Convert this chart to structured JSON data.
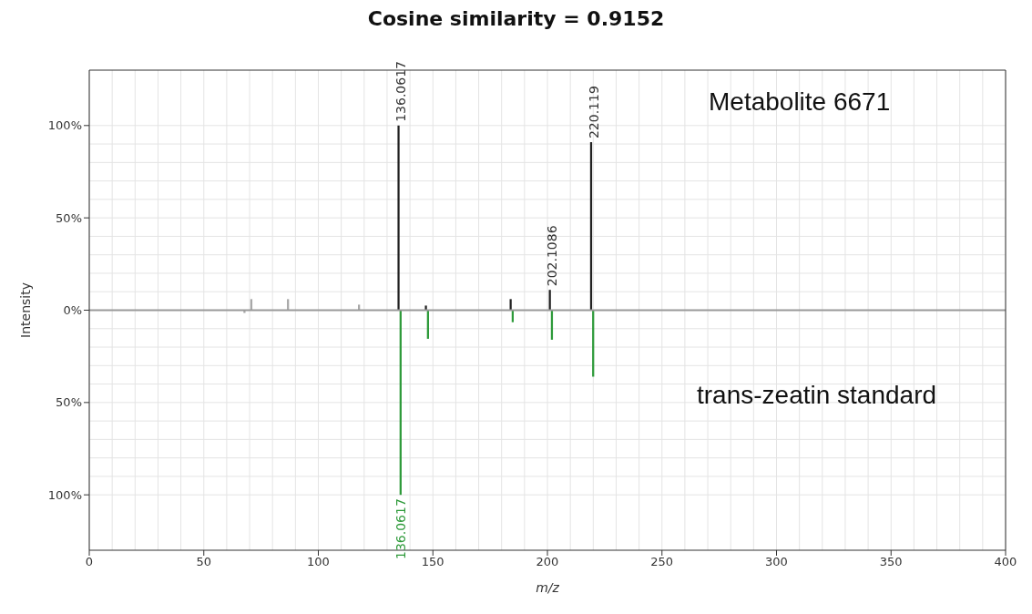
{
  "chart_data": {
    "type": "bar",
    "title": "Cosine similarity = 0.9152",
    "xlabel": "m/z",
    "ylabel": "Intensity",
    "xlim": [
      0,
      400
    ],
    "xticks": [
      0,
      50,
      100,
      150,
      200,
      250,
      300,
      350,
      400
    ],
    "ylim": [
      -130,
      130
    ],
    "yticks": [
      {
        "value": -100,
        "label": "100%"
      },
      {
        "value": -50,
        "label": "50%"
      },
      {
        "value": 0,
        "label": "0%"
      },
      {
        "value": 50,
        "label": "50%"
      },
      {
        "value": 100,
        "label": "100%"
      }
    ],
    "grid": true,
    "legend": false,
    "ref_lines": [
      {
        "axis": "y",
        "value": 0,
        "color": "#999999"
      }
    ],
    "series": [
      {
        "name": "Metabolite 6671",
        "color": "#222222",
        "x": [
          136.06,
          148,
          185,
          202.11,
          220.12
        ],
        "values": [
          100,
          2.5,
          6,
          11,
          91
        ]
      },
      {
        "name": "trans-zeatin standard",
        "color": "#2e9a3a",
        "x": [
          136.06,
          148,
          185,
          202.11,
          220.12
        ],
        "values": [
          -100,
          -15.5,
          -6.5,
          -16,
          -36
        ]
      },
      {
        "color": "#a8a8a8",
        "x": [
          67,
          70,
          86,
          117
        ],
        "values": [
          -1.5,
          6,
          6,
          3
        ]
      }
    ],
    "annotations": [
      {
        "text": "136.0617",
        "x": 136.06,
        "y": 100
      },
      {
        "text": "220.119",
        "x": 220.12,
        "y": 91
      },
      {
        "text": "202.1086",
        "x": 202.11,
        "y": 11
      },
      {
        "text": "136.0617",
        "x": 136.06,
        "y": -100
      }
    ]
  }
}
